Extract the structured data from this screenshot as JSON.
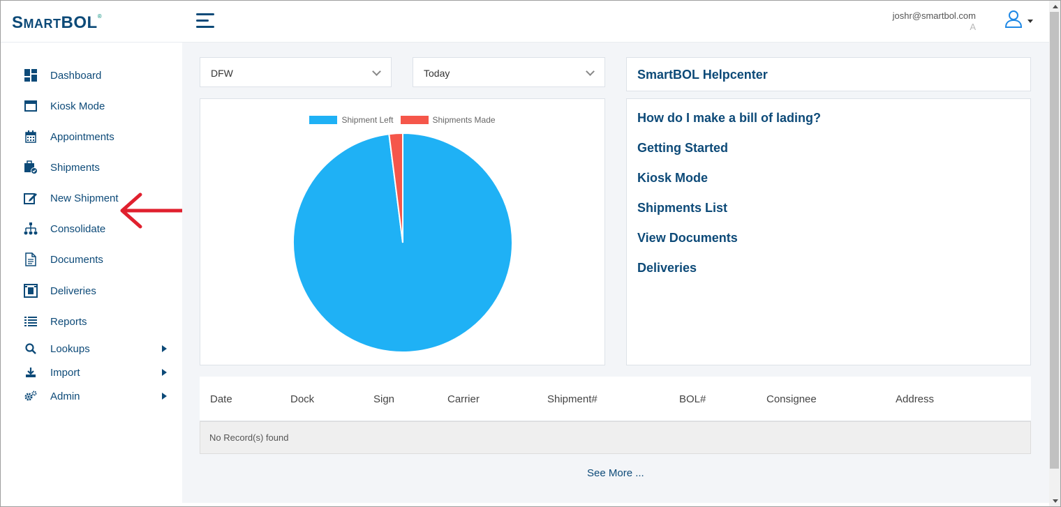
{
  "app": {
    "logo_big_1": "S",
    "logo_small_1": "MART",
    "logo_big_2": "BOL",
    "logo_reg": "®"
  },
  "header": {
    "user_email": "joshr@smartbol.com",
    "user_initial": "A"
  },
  "sidebar": {
    "items": [
      {
        "label": "Dashboard",
        "icon": "dashboard-icon"
      },
      {
        "label": "Kiosk Mode",
        "icon": "window-icon"
      },
      {
        "label": "Appointments",
        "icon": "calendar-icon"
      },
      {
        "label": "Shipments",
        "icon": "shipments-icon"
      },
      {
        "label": "New Shipment",
        "icon": "edit-icon"
      },
      {
        "label": "Consolidate",
        "icon": "sitemap-icon"
      },
      {
        "label": "Documents",
        "icon": "document-icon"
      },
      {
        "label": "Deliveries",
        "icon": "box-icon"
      },
      {
        "label": "Reports",
        "icon": "list-icon"
      },
      {
        "label": "Lookups",
        "icon": "search-icon"
      },
      {
        "label": "Import",
        "icon": "download-icon"
      },
      {
        "label": "Admin",
        "icon": "cogs-icon"
      }
    ]
  },
  "filters": {
    "location": "DFW",
    "period": "Today"
  },
  "chart_data": {
    "type": "pie",
    "series": [
      {
        "name": "Shipment Left",
        "value": 98
      },
      {
        "name": "Shipments Made",
        "value": 2
      }
    ],
    "colors": [
      "#1fb1f5",
      "#f5564a"
    ],
    "legend": "top"
  },
  "help": {
    "title": "SmartBOL Helpcenter",
    "links": [
      "How do I make a bill of lading?",
      "Getting Started",
      "Kiosk Mode",
      "Shipments List",
      "View Documents",
      "Deliveries"
    ]
  },
  "table": {
    "columns": [
      "Date",
      "Dock",
      "Sign",
      "Carrier",
      "Shipment#",
      "BOL#",
      "Consignee",
      "Address"
    ],
    "empty_text": "No Record(s) found"
  },
  "see_more": "See More ...",
  "colors": {
    "primary": "#0d4a78",
    "annotation_arrow": "#e0202e"
  }
}
